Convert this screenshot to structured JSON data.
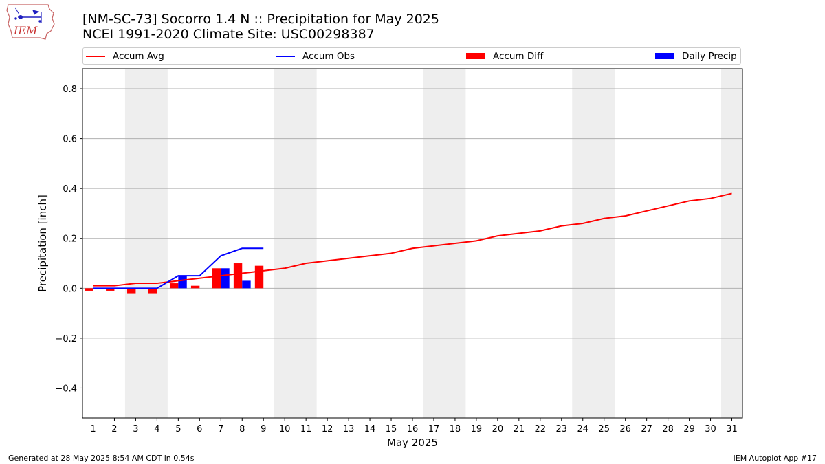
{
  "header": {
    "title_line1": "[NM-SC-73] Socorro 1.4 N :: Precipitation for May 2025",
    "title_line2": "NCEI 1991-2020 Climate Site: USC00298387",
    "logo_text": "IEM",
    "logo_icon": "iem-iowa-weather-logo"
  },
  "footer": {
    "left": "Generated at 28 May 2025 8:54 AM CDT in 0.54s",
    "right": "IEM Autoplot App #17"
  },
  "colors": {
    "avg": "#ff0000",
    "obs": "#0000ff",
    "diff": "#ff0000",
    "daily": "#0000ff",
    "weekend_shade": "#eeeeee",
    "grid": "#b0b0b0"
  },
  "chart_data": {
    "type": "bar",
    "title": "[NM-SC-73] Socorro 1.4 N :: Precipitation for May 2025",
    "xlabel": "May 2025",
    "ylabel": "Precipitation [inch]",
    "ylim": [
      -0.52,
      0.88
    ],
    "yticks": [
      -0.4,
      -0.2,
      0.0,
      0.2,
      0.4,
      0.6,
      0.8
    ],
    "ytick_labels": [
      "−0.4",
      "−0.2",
      "0.0",
      "0.2",
      "0.4",
      "0.6",
      "0.8"
    ],
    "xticks": [
      1,
      2,
      3,
      4,
      5,
      6,
      7,
      8,
      9,
      10,
      11,
      12,
      13,
      14,
      15,
      16,
      17,
      18,
      19,
      20,
      21,
      22,
      23,
      24,
      25,
      26,
      27,
      28,
      29,
      30,
      31
    ],
    "grid": "horizontal",
    "legend_placement": "top",
    "weekends": [
      [
        3,
        4
      ],
      [
        10,
        11
      ],
      [
        17,
        18
      ],
      [
        24,
        25
      ],
      [
        31,
        31
      ]
    ],
    "series": [
      {
        "name": "Accum Avg",
        "kind": "line",
        "x": [
          1,
          2,
          3,
          4,
          5,
          6,
          7,
          8,
          9,
          10,
          11,
          12,
          13,
          14,
          15,
          16,
          17,
          18,
          19,
          20,
          21,
          22,
          23,
          24,
          25,
          26,
          27,
          28,
          29,
          30,
          31
        ],
        "values": [
          0.01,
          0.01,
          0.02,
          0.02,
          0.03,
          0.04,
          0.05,
          0.06,
          0.07,
          0.08,
          0.1,
          0.11,
          0.12,
          0.13,
          0.14,
          0.16,
          0.17,
          0.18,
          0.19,
          0.21,
          0.22,
          0.23,
          0.25,
          0.26,
          0.28,
          0.29,
          0.31,
          0.33,
          0.35,
          0.36,
          0.38
        ]
      },
      {
        "name": "Accum Obs",
        "kind": "line",
        "x": [
          1,
          2,
          3,
          4,
          5,
          6,
          7,
          8,
          9
        ],
        "values": [
          0.0,
          0.0,
          0.0,
          0.0,
          0.05,
          0.05,
          0.13,
          0.16,
          0.16
        ]
      },
      {
        "name": "Accum Diff",
        "kind": "bar",
        "x": [
          1,
          2,
          3,
          4,
          5,
          6,
          7,
          8,
          9
        ],
        "values": [
          -0.01,
          -0.01,
          -0.02,
          -0.02,
          0.02,
          0.01,
          0.08,
          0.1,
          0.09
        ]
      },
      {
        "name": "Daily Precip",
        "kind": "bar",
        "x": [
          1,
          2,
          3,
          4,
          5,
          6,
          7,
          8,
          9
        ],
        "values": [
          0.0,
          0.0,
          0.0,
          0.0,
          0.05,
          0.0,
          0.08,
          0.03,
          0.0
        ]
      }
    ]
  }
}
